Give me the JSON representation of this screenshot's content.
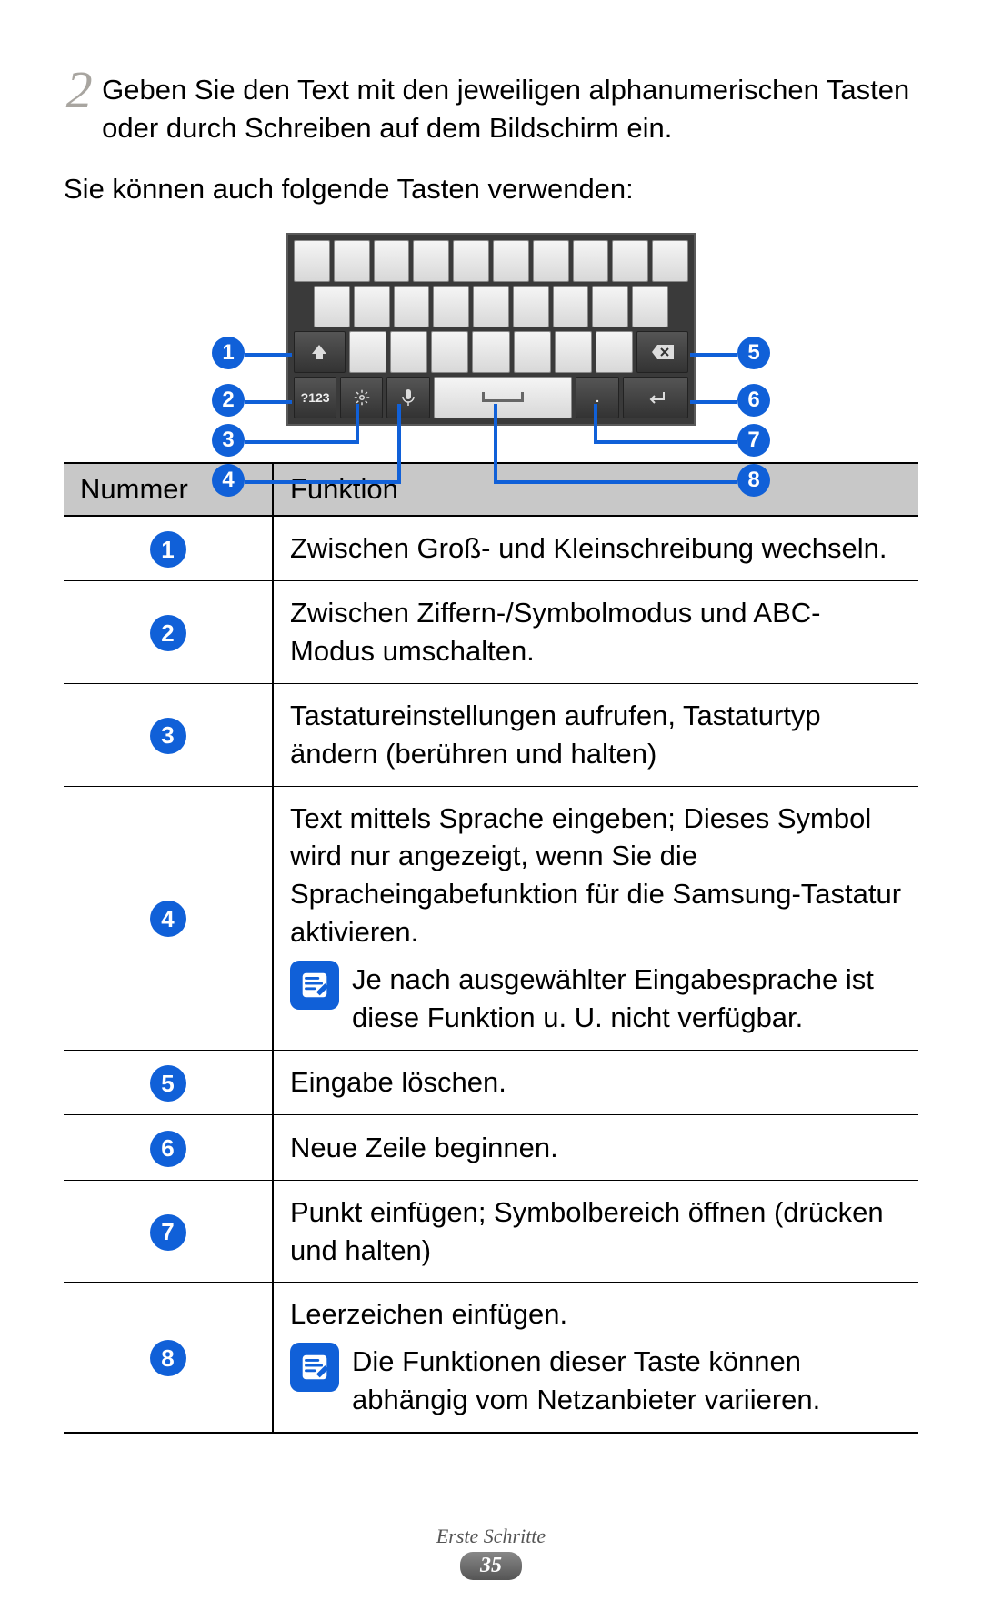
{
  "step": {
    "number": "2",
    "text": "Geben Sie den Text mit den jeweiligen alphanumerischen Tasten oder durch Schreiben auf dem Bildschirm ein."
  },
  "subtext": "Sie können auch folgende Tasten verwenden:",
  "keyboard": {
    "symbol_key_label": "?123",
    "callouts_left": [
      "1",
      "2",
      "3",
      "4"
    ],
    "callouts_right": [
      "5",
      "6",
      "7",
      "8"
    ]
  },
  "table": {
    "header_number": "Nummer",
    "header_function": "Funktion",
    "rows": [
      {
        "num": "1",
        "text": "Zwischen Groß- und Kleinschreibung wechseln.",
        "note": null
      },
      {
        "num": "2",
        "text": "Zwischen Ziffern-/Symbolmodus und ABC-Modus umschalten.",
        "note": null
      },
      {
        "num": "3",
        "text": "Tastatureinstellungen aufrufen, Tastaturtyp ändern (berühren und halten)",
        "note": null
      },
      {
        "num": "4",
        "text": "Text mittels Sprache eingeben; Dieses Symbol wird nur angezeigt, wenn Sie die Spracheingabefunktion für die Samsung-Tastatur aktivieren.",
        "note": "Je nach ausgewählter Eingabesprache ist diese Funktion u. U. nicht verfügbar."
      },
      {
        "num": "5",
        "text": "Eingabe löschen.",
        "note": null
      },
      {
        "num": "6",
        "text": "Neue Zeile beginnen.",
        "note": null
      },
      {
        "num": "7",
        "text": "Punkt einfügen; Symbolbereich öffnen (drücken und halten)",
        "note": null
      },
      {
        "num": "8",
        "text": "Leerzeichen einfügen.",
        "note": "Die Funktionen dieser Taste können abhängig vom Netzanbieter variieren."
      }
    ]
  },
  "footer": {
    "section": "Erste Schritte",
    "page": "35"
  },
  "colors": {
    "badge_bg": "#1060d8",
    "badge_fg": "#ffffff",
    "table_header_bg": "#c8c8c8",
    "step_number_color": "#a8a5a0"
  }
}
